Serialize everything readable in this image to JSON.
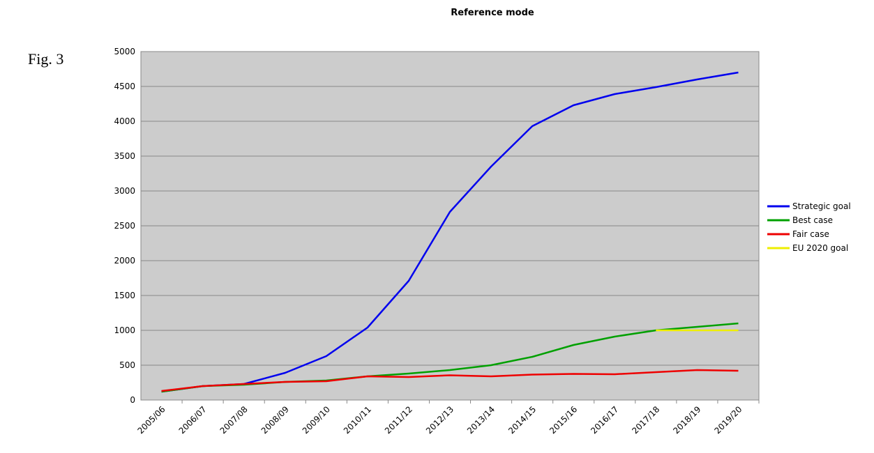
{
  "figure_label": "Fig. 3",
  "chart_data": {
    "type": "line",
    "title": "Reference mode",
    "categories": [
      "2005/06",
      "2006/07",
      "2007/08",
      "2008/09",
      "2009/10",
      "2010/11",
      "2011/12",
      "2012/13",
      "2013/14",
      "2014/15",
      "2015/16",
      "2016/17",
      "2017/18",
      "2018/19",
      "2019/20"
    ],
    "series": [
      {
        "name": "Strategic goal",
        "color": "#0000ee",
        "values": [
          120,
          200,
          230,
          390,
          630,
          1040,
          1710,
          2700,
          3350,
          3930,
          4230,
          4390,
          4490,
          4600,
          4700
        ]
      },
      {
        "name": "Best case",
        "color": "#00a000",
        "values": [
          120,
          200,
          220,
          260,
          280,
          340,
          380,
          430,
          500,
          620,
          790,
          910,
          1000,
          1050,
          1100
        ]
      },
      {
        "name": "Fair case",
        "color": "#ee0000",
        "values": [
          130,
          200,
          230,
          260,
          270,
          340,
          330,
          355,
          340,
          365,
          375,
          370,
          400,
          430,
          420
        ]
      },
      {
        "name": "EU 2020 goal",
        "color": "#eeee00",
        "values": [
          null,
          null,
          null,
          null,
          null,
          null,
          null,
          null,
          null,
          null,
          null,
          null,
          1000,
          1000,
          1000
        ]
      }
    ],
    "ylim": [
      0,
      5000
    ],
    "yticks": [
      0,
      500,
      1000,
      1500,
      2000,
      2500,
      3000,
      3500,
      4000,
      4500,
      5000
    ],
    "grid": true,
    "legend": "right"
  }
}
